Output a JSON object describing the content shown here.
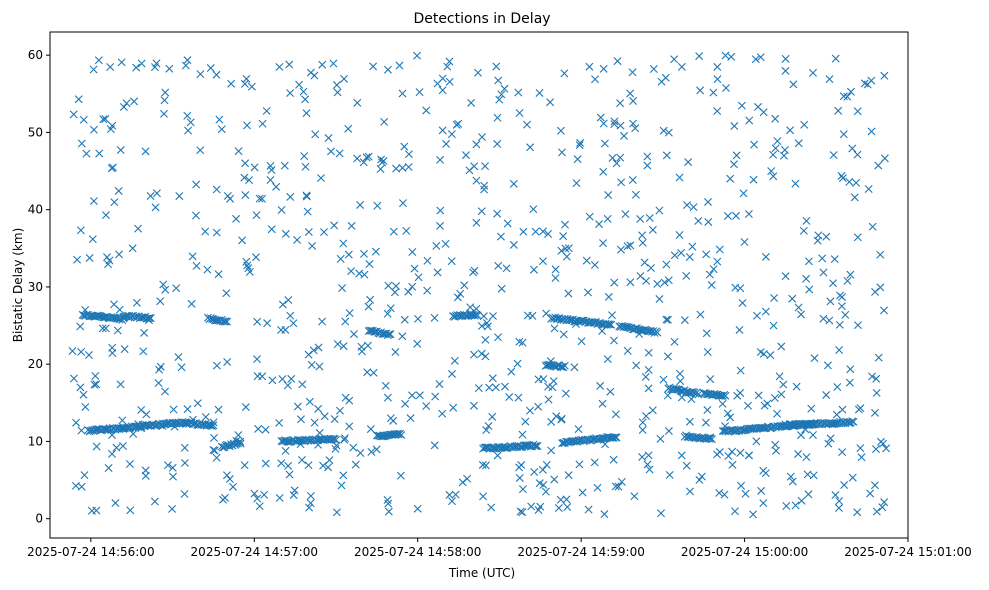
{
  "chart_data": {
    "type": "scatter",
    "title": "Detections in Delay",
    "xlabel": "Time (UTC)",
    "ylabel": "Bistatic Delay (km)",
    "marker": "x",
    "marker_color": "#1f77b4",
    "grid": false,
    "legend": "none",
    "x_unit": "time",
    "xlim": [
      "2025-07-24 14:55:45",
      "2025-07-24 15:01:00"
    ],
    "ylim": [
      -2.5,
      63
    ],
    "x_ticks": [
      "2025-07-24 14:56:00",
      "2025-07-24 14:57:00",
      "2025-07-24 14:58:00",
      "2025-07-24 14:59:00",
      "2025-07-24 15:00:00",
      "2025-07-24 15:01:00"
    ],
    "y_ticks": [
      0,
      10,
      20,
      30,
      40,
      50,
      60
    ],
    "tracks": [
      {
        "from": [
          "2025-07-24 14:55:57",
          26.4
        ],
        "to": [
          "2025-07-24 14:56:12",
          25.8
        ]
      },
      {
        "from": [
          "2025-07-24 14:56:12",
          26.2
        ],
        "to": [
          "2025-07-24 14:56:22",
          26.0
        ]
      },
      {
        "from": [
          "2025-07-24 14:56:43",
          25.9
        ],
        "to": [
          "2025-07-24 14:56:50",
          25.5
        ]
      },
      {
        "from": [
          "2025-07-24 14:57:42",
          24.3
        ],
        "to": [
          "2025-07-24 14:57:50",
          23.8
        ]
      },
      {
        "from": [
          "2025-07-24 14:58:13",
          26.2
        ],
        "to": [
          "2025-07-24 14:58:22",
          26.4
        ]
      },
      {
        "from": [
          "2025-07-24 14:58:49",
          26.0
        ],
        "to": [
          "2025-07-24 14:59:11",
          25.1
        ]
      },
      {
        "from": [
          "2025-07-24 14:59:14",
          24.9
        ],
        "to": [
          "2025-07-24 14:59:28",
          24.1
        ]
      },
      {
        "from": [
          "2025-07-24 14:55:59",
          11.4
        ],
        "to": [
          "2025-07-24 14:56:12",
          11.7
        ]
      },
      {
        "from": [
          "2025-07-24 14:56:12",
          11.8
        ],
        "to": [
          "2025-07-24 14:56:35",
          12.5
        ]
      },
      {
        "from": [
          "2025-07-24 14:56:35",
          12.4
        ],
        "to": [
          "2025-07-24 14:56:45",
          12.0
        ]
      },
      {
        "from": [
          "2025-07-24 14:56:48",
          9.3
        ],
        "to": [
          "2025-07-24 14:56:55",
          9.8
        ]
      },
      {
        "from": [
          "2025-07-24 14:57:10",
          10.0
        ],
        "to": [
          "2025-07-24 14:57:30",
          10.3
        ]
      },
      {
        "from": [
          "2025-07-24 14:57:45",
          10.7
        ],
        "to": [
          "2025-07-24 14:57:54",
          10.9
        ]
      },
      {
        "from": [
          "2025-07-24 14:58:24",
          9.1
        ],
        "to": [
          "2025-07-24 14:58:44",
          9.5
        ]
      },
      {
        "from": [
          "2025-07-24 14:58:47",
          19.9
        ],
        "to": [
          "2025-07-24 14:58:54",
          19.7
        ]
      },
      {
        "from": [
          "2025-07-24 14:58:53",
          9.8
        ],
        "to": [
          "2025-07-24 14:59:13",
          10.6
        ]
      },
      {
        "from": [
          "2025-07-24 14:59:32",
          16.9
        ],
        "to": [
          "2025-07-24 14:59:43",
          16.2
        ]
      },
      {
        "from": [
          "2025-07-24 14:59:45",
          16.2
        ],
        "to": [
          "2025-07-24 14:59:53",
          15.9
        ]
      },
      {
        "from": [
          "2025-07-24 14:59:38",
          10.7
        ],
        "to": [
          "2025-07-24 14:59:48",
          10.3
        ]
      },
      {
        "from": [
          "2025-07-24 14:59:52",
          11.3
        ],
        "to": [
          "2025-07-24 15:00:26",
          12.3
        ]
      },
      {
        "from": [
          "2025-07-24 15:00:15",
          12.1
        ],
        "to": [
          "2025-07-24 15:00:40",
          12.5
        ]
      }
    ],
    "noise": {
      "count": 900,
      "seed": 20250724,
      "t_from": "2025-07-24 14:55:53",
      "t_to": "2025-07-24 15:00:52",
      "y_min": 0.5,
      "y_max": 60
    }
  }
}
